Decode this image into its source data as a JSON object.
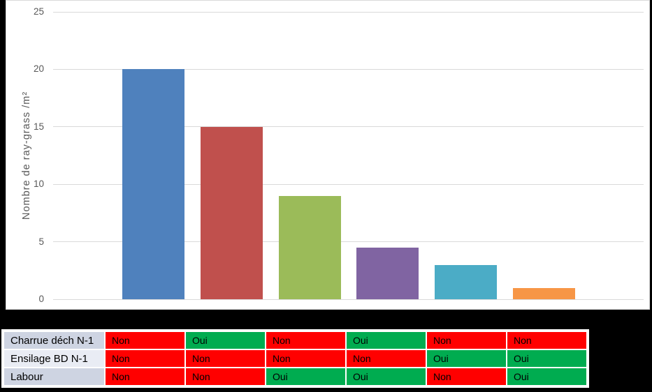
{
  "chart_data": {
    "type": "bar",
    "title": "",
    "xlabel": "",
    "ylabel": "Nombre de ray-grass /m²",
    "ylim": [
      0,
      25
    ],
    "yticks": [
      0,
      5,
      10,
      15,
      20,
      25
    ],
    "grid": true,
    "legend": false,
    "x_tick_labels": [
      "",
      "",
      "",
      "",
      "",
      ""
    ],
    "values": [
      20,
      15,
      9,
      4.5,
      3,
      1
    ],
    "bar_colors": [
      "#4F81BD",
      "#C0504D",
      "#9BBB59",
      "#8064A2",
      "#4BACC6",
      "#F79646"
    ],
    "axis_text_color": "#595959",
    "gridline_color": "#D9D9D9",
    "plot_background": "#FFFFFF"
  },
  "table": {
    "yes_label": "Oui",
    "no_label": "Non",
    "yes_color": "#00AC50",
    "no_color": "#FF0000",
    "header_bg_odd": "#CED4E2",
    "header_bg_even": "#E9ECF4",
    "rows": [
      {
        "label": "Charrue déch N-1",
        "values": [
          "Non",
          "Oui",
          "Non",
          "Oui",
          "Non",
          "Non"
        ]
      },
      {
        "label": "Ensilage BD N-1",
        "values": [
          "Non",
          "Non",
          "Non",
          "Non",
          "Oui",
          "Oui"
        ]
      },
      {
        "label": "Labour",
        "values": [
          "Non",
          "Non",
          "Oui",
          "Oui",
          "Non",
          "Oui"
        ]
      }
    ]
  }
}
